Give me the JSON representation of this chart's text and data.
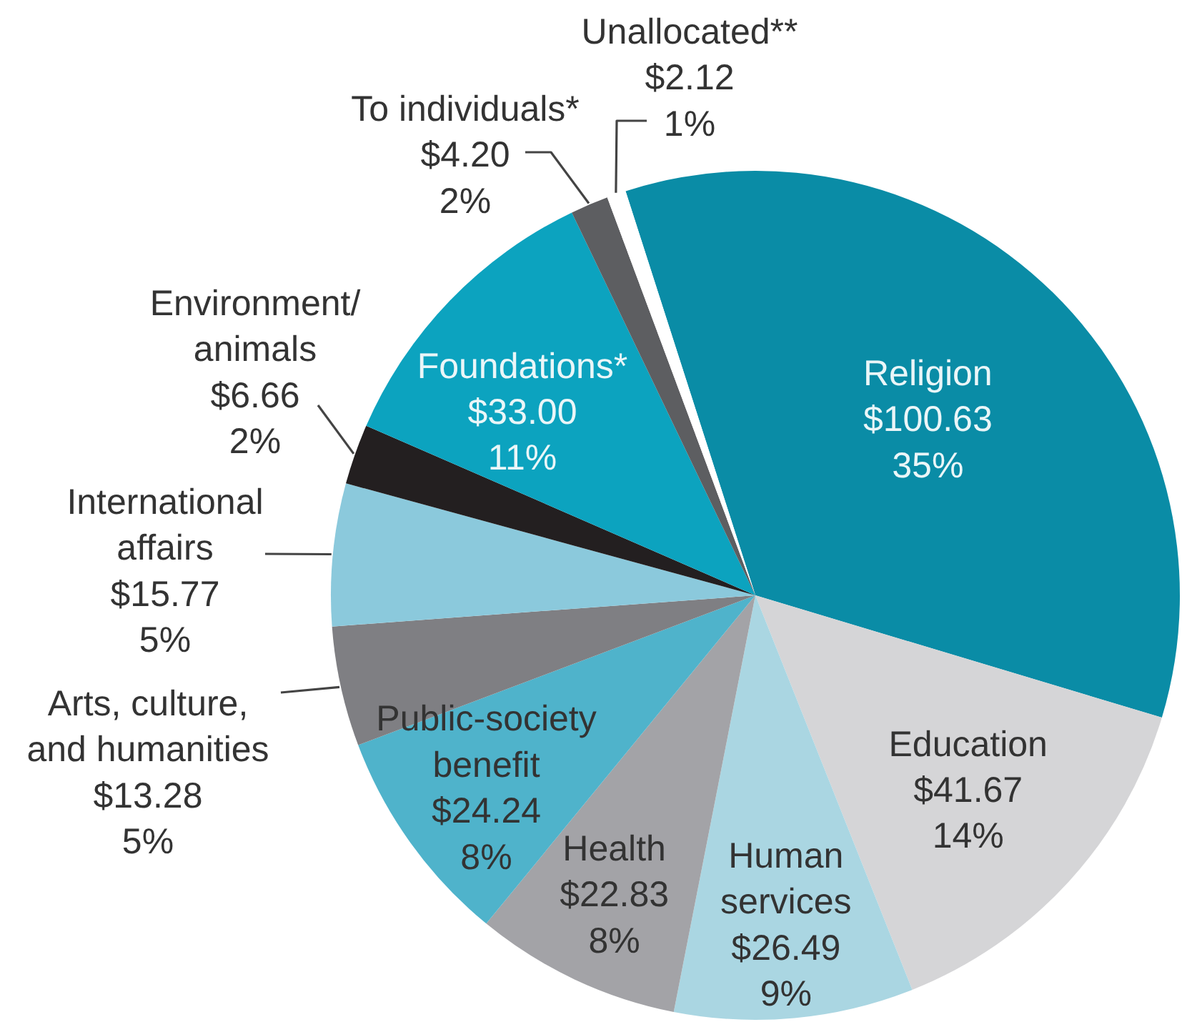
{
  "chart_data": {
    "type": "pie",
    "categories": [
      "Religion",
      "Education",
      "Human\nservices",
      "Health",
      "Public-society\nbenefit",
      "Arts, culture,\nand humanities",
      "International\naffairs",
      "Environment/\nanimals",
      "Foundations*",
      "To individuals*",
      "Unallocated**"
    ],
    "values": [
      100.63,
      41.67,
      26.49,
      22.83,
      24.24,
      13.28,
      15.77,
      6.66,
      33.0,
      4.2,
      2.12
    ],
    "colors": [
      "#0a8ca6",
      "#d5d5d7",
      "#aad6e2",
      "#a3a3a7",
      "#4fb3cb",
      "#7f7f83",
      "#8bc9dc",
      "#231f20",
      "#0ca3bf",
      "#5d5e61",
      "#ffffff"
    ],
    "value_labels": [
      "$100.63\n35%",
      "$41.67\n14%",
      "$26.49\n9%",
      "$22.83\n8%",
      "$24.24\n8%",
      "$13.28\n5%",
      "$15.77\n5%",
      "$6.66\n2%",
      "$33.00\n11%",
      "$4.20\n2%",
      "$2.12\n1%"
    ]
  }
}
